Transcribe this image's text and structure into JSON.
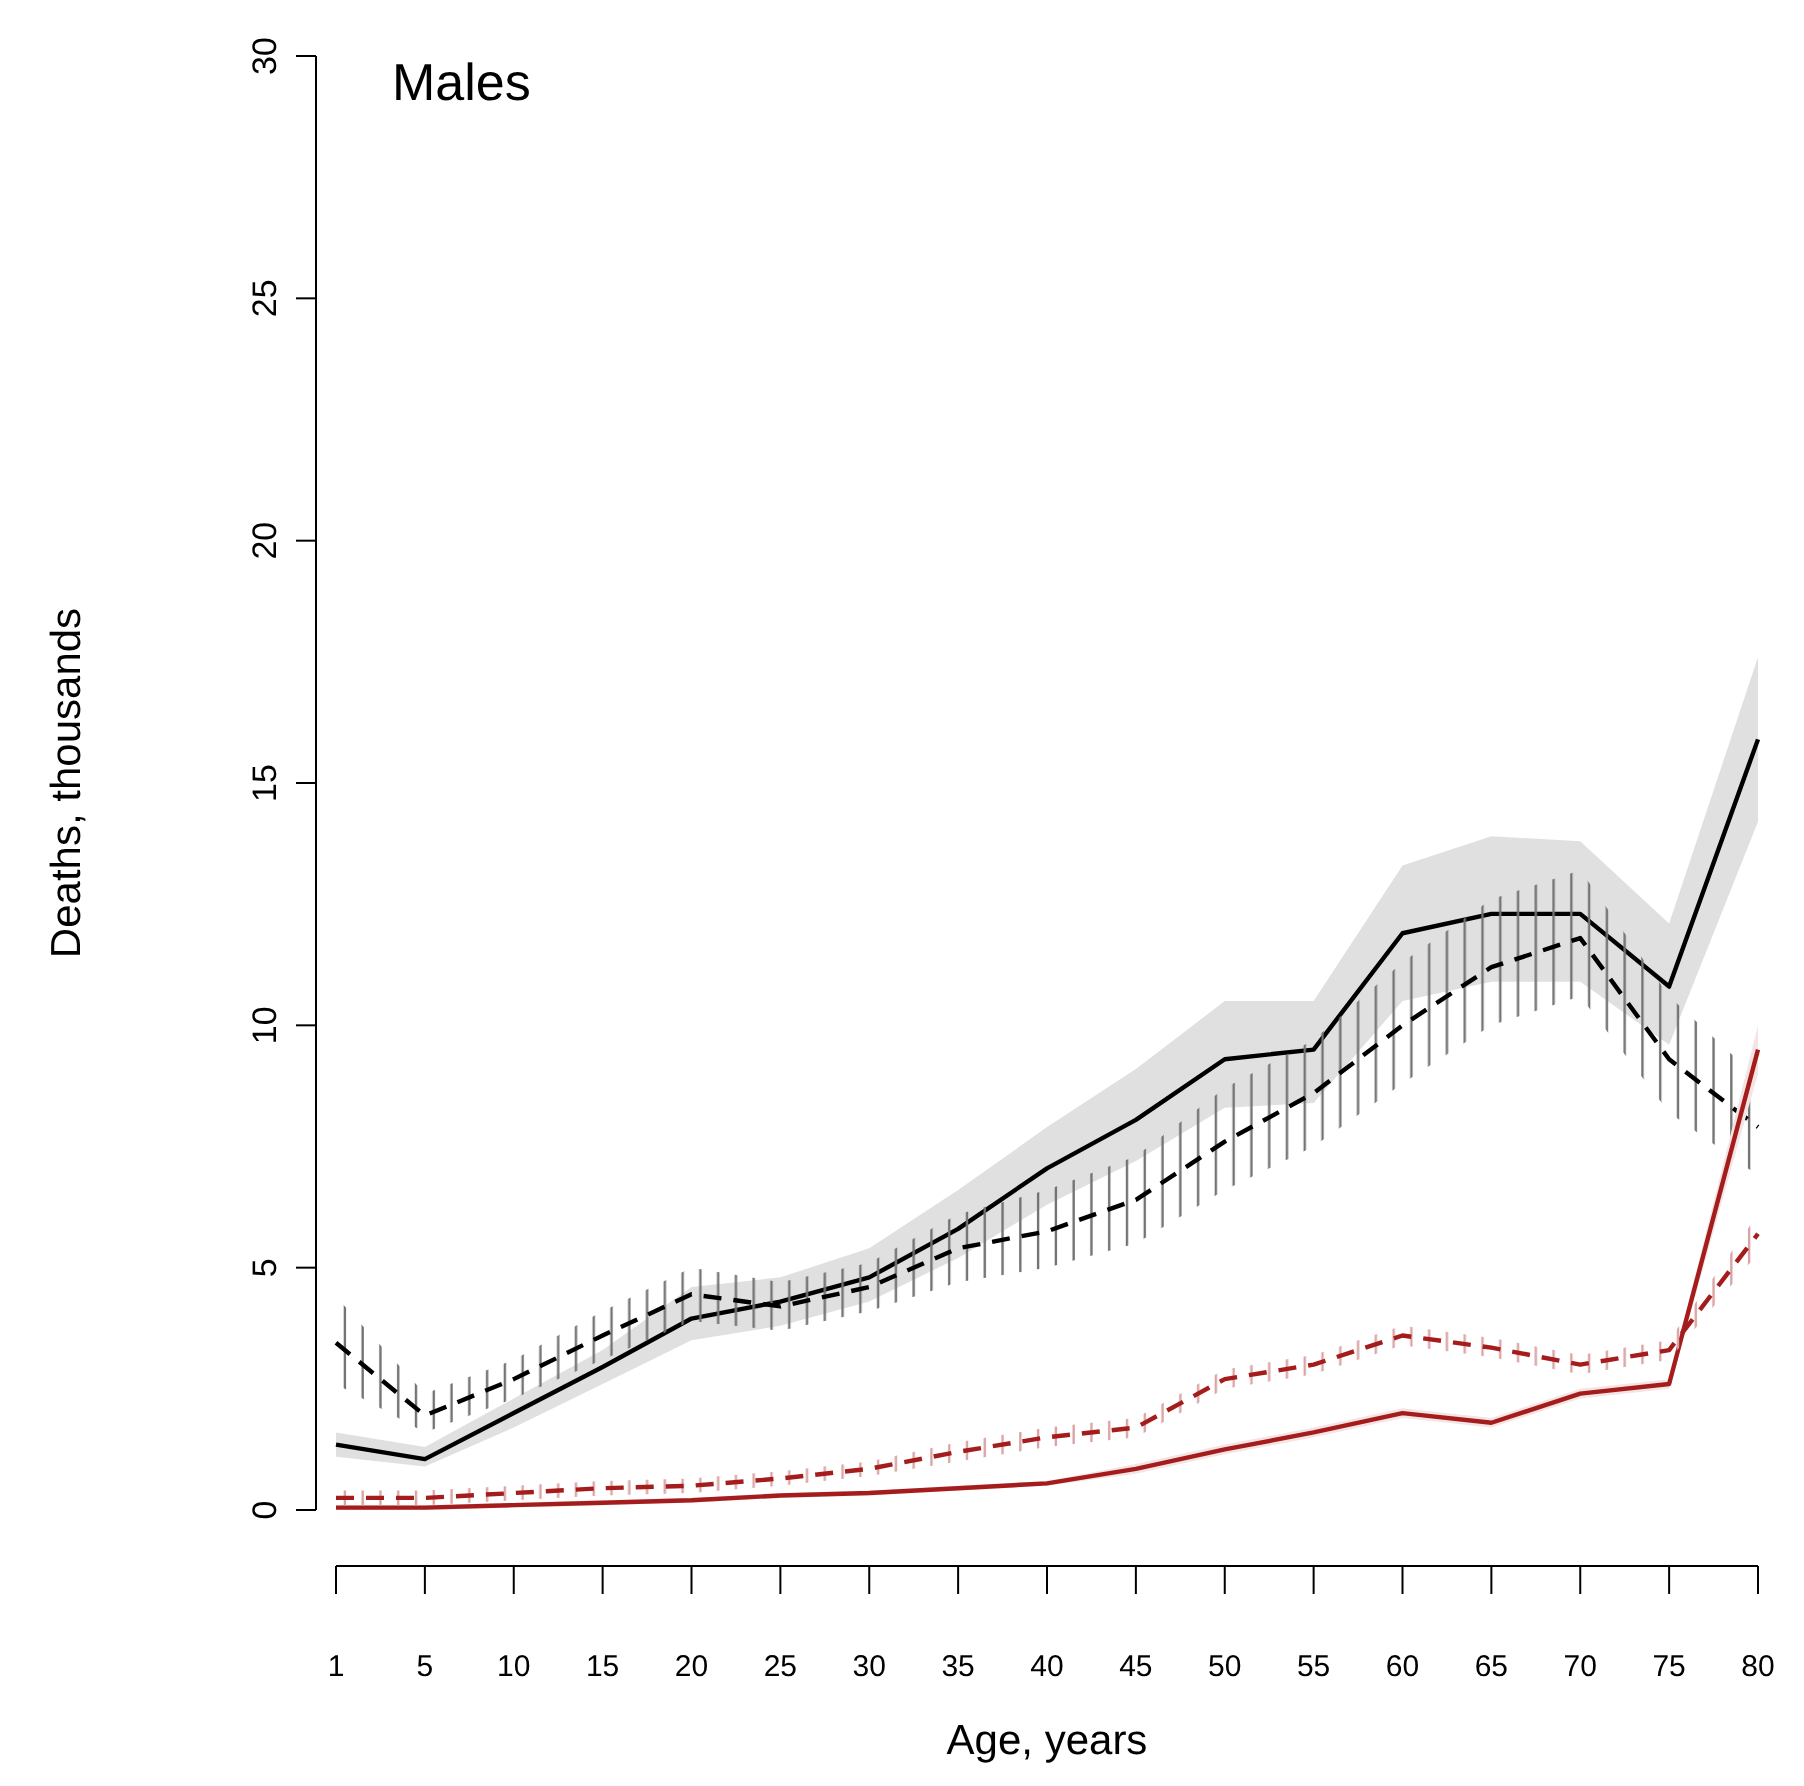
{
  "chart_data": {
    "type": "line",
    "title": "Males",
    "xlabel": "Age, years",
    "ylabel": "Deaths, thousands",
    "categories": [
      "1",
      "5",
      "10",
      "15",
      "20",
      "25",
      "30",
      "35",
      "40",
      "45",
      "50",
      "55",
      "60",
      "65",
      "70",
      "75",
      "80"
    ],
    "ylim": [
      0,
      30
    ],
    "yticks": [
      0,
      5,
      10,
      15,
      20,
      25,
      30
    ],
    "grid": false,
    "marker": "none",
    "series": [
      {
        "color": "#000000",
        "line_style": "solid",
        "values": [
          1.35,
          1.05,
          2.0,
          2.95,
          3.95,
          4.3,
          4.8,
          5.8,
          7.05,
          8.05,
          9.3,
          9.5,
          11.9,
          12.3,
          12.3,
          10.8,
          15.9
        ],
        "lower": [
          1.1,
          0.9,
          1.7,
          2.6,
          3.5,
          3.8,
          4.3,
          5.2,
          6.3,
          7.2,
          8.3,
          8.4,
          10.5,
          10.9,
          10.9,
          9.6,
          14.2
        ],
        "upper": [
          1.6,
          1.3,
          2.3,
          3.3,
          4.6,
          4.8,
          5.4,
          6.6,
          7.9,
          9.1,
          10.5,
          10.5,
          13.3,
          13.9,
          13.8,
          12.1,
          17.6
        ]
      },
      {
        "color": "#000000",
        "line_style": "dashed",
        "values": [
          3.45,
          1.95,
          2.7,
          3.6,
          4.45,
          4.2,
          4.6,
          5.4,
          5.75,
          6.4,
          7.6,
          8.6,
          10.0,
          11.2,
          11.8,
          9.3,
          7.9
        ],
        "lower": [
          2.6,
          1.6,
          2.3,
          3.1,
          3.9,
          3.7,
          4.1,
          4.7,
          5.0,
          5.5,
          6.6,
          7.5,
          8.8,
          10.0,
          10.6,
          8.2,
          6.9
        ],
        "upper": [
          4.4,
          2.4,
          3.1,
          4.1,
          5.0,
          4.7,
          5.1,
          6.1,
          6.6,
          7.3,
          8.7,
          9.7,
          11.3,
          12.6,
          13.2,
          10.6,
          8.9
        ]
      },
      {
        "color": "#a51c1c",
        "line_style": "solid",
        "values": [
          0.05,
          0.05,
          0.1,
          0.15,
          0.2,
          0.3,
          0.35,
          0.45,
          0.55,
          0.85,
          1.25,
          1.6,
          2.0,
          1.8,
          2.4,
          2.6,
          9.5
        ],
        "lower": [
          0.0,
          0.0,
          0.05,
          0.1,
          0.15,
          0.25,
          0.3,
          0.4,
          0.5,
          0.75,
          1.15,
          1.5,
          1.9,
          1.7,
          2.3,
          2.5,
          9.0
        ],
        "upper": [
          0.1,
          0.1,
          0.15,
          0.2,
          0.25,
          0.35,
          0.4,
          0.5,
          0.6,
          0.95,
          1.35,
          1.7,
          2.1,
          1.9,
          2.5,
          2.7,
          10.0
        ]
      },
      {
        "color": "#a51c1c",
        "line_style": "dashed",
        "values": [
          0.25,
          0.25,
          0.35,
          0.45,
          0.5,
          0.65,
          0.85,
          1.2,
          1.5,
          1.7,
          2.7,
          3.0,
          3.6,
          3.35,
          3.0,
          3.3,
          5.7
        ],
        "lower": [
          0.1,
          0.1,
          0.2,
          0.3,
          0.35,
          0.5,
          0.7,
          1.0,
          1.3,
          1.5,
          2.5,
          2.8,
          3.4,
          3.15,
          2.8,
          3.1,
          5.3
        ],
        "upper": [
          0.4,
          0.4,
          0.5,
          0.6,
          0.65,
          0.8,
          1.0,
          1.4,
          1.7,
          1.9,
          2.9,
          3.2,
          3.8,
          3.55,
          3.2,
          3.5,
          6.1
        ]
      }
    ]
  }
}
